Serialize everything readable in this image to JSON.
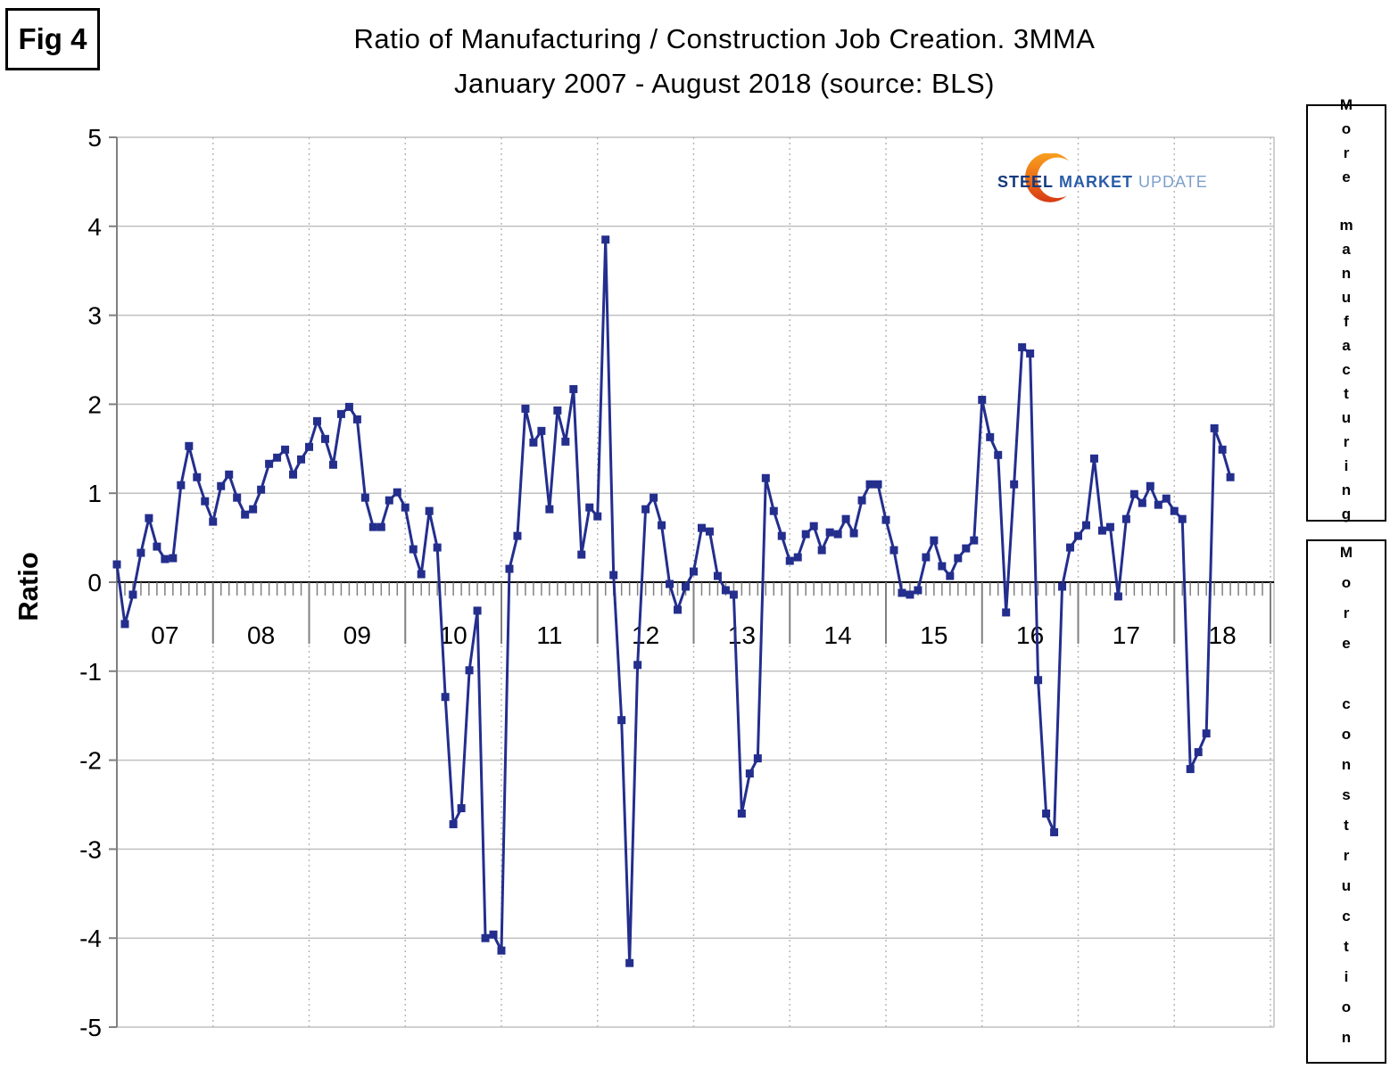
{
  "figure_label": "Fig 4",
  "title_line1": "Ratio of Manufacturing / Construction Job Creation. 3MMA",
  "title_line2": "January 2007 - August 2018 (source: BLS)",
  "y_axis_title": "Ratio",
  "logo": {
    "steel": "STEEL",
    "market": "MARKET",
    "update": "UPDATE"
  },
  "side_labels": {
    "top": "More manufacturing",
    "bottom": "More construction"
  },
  "colors": {
    "series": "#232E8D",
    "grid": "#C0C0C0",
    "axis_zero_line": "#000000",
    "axis_gray": "#808080",
    "year_dashed": "#B8B8B8",
    "logo_orange_top": "#F7A11E",
    "logo_orange_mid": "#EE7118",
    "logo_orange_bottom": "#D63A14",
    "logo_steel_blue": "#14397C",
    "logo_market_blue": "#2A5CA8",
    "logo_update_blue": "#7D9FCC"
  },
  "chart_data": {
    "type": "line",
    "title": "Ratio of Manufacturing / Construction Job Creation. 3MMA",
    "subtitle": "January 2007 - August 2018 (source: BLS)",
    "ylabel": "Ratio",
    "ylim": [
      -5,
      5
    ],
    "y_ticks": [
      5,
      4,
      3,
      2,
      1,
      0,
      -1,
      -2,
      -3,
      -4,
      -5
    ],
    "x_start": "2007-01",
    "x_end": "2018-08",
    "frequency": "monthly",
    "year_labels": [
      "07",
      "08",
      "09",
      "10",
      "11",
      "12",
      "13",
      "14",
      "15",
      "16",
      "17",
      "18"
    ],
    "grid": {
      "horizontal": "solid",
      "vertical": "dotted-yearly"
    },
    "legend": "none",
    "series": [
      {
        "name": "Manufacturing / Construction job creation ratio (3MMA)",
        "marker": "square",
        "color": "#232E8D",
        "values": [
          0.2,
          -0.47,
          -0.14,
          0.33,
          0.72,
          0.4,
          0.26,
          0.27,
          1.09,
          1.53,
          1.18,
          0.91,
          0.68,
          1.08,
          1.21,
          0.95,
          0.76,
          0.82,
          1.04,
          1.33,
          1.4,
          1.49,
          1.21,
          1.38,
          1.52,
          1.81,
          1.61,
          1.32,
          1.89,
          1.97,
          1.83,
          0.95,
          0.62,
          0.62,
          0.92,
          1.01,
          0.84,
          0.37,
          0.09,
          0.8,
          0.39,
          -1.29,
          -2.72,
          -2.54,
          -0.99,
          -0.32,
          -4.0,
          -3.96,
          -4.14,
          0.15,
          0.52,
          1.95,
          1.57,
          1.7,
          0.82,
          1.93,
          1.58,
          2.17,
          0.31,
          0.84,
          0.74,
          3.85,
          0.08,
          -1.55,
          -4.28,
          -0.93,
          0.82,
          0.95,
          0.64,
          -0.02,
          -0.31,
          -0.05,
          0.12,
          0.61,
          0.57,
          0.07,
          -0.09,
          -0.14,
          -2.6,
          -2.15,
          -1.98,
          1.17,
          0.8,
          0.52,
          0.24,
          0.28,
          0.54,
          0.63,
          0.36,
          0.56,
          0.54,
          0.71,
          0.55,
          0.92,
          1.1,
          1.1,
          0.7,
          0.36,
          -0.12,
          -0.14,
          -0.09,
          0.28,
          0.47,
          0.18,
          0.07,
          0.27,
          0.38,
          0.47,
          2.05,
          1.63,
          1.43,
          -0.34,
          1.1,
          2.64,
          2.57,
          -1.1,
          -2.6,
          -2.81,
          -0.05,
          0.39,
          0.52,
          0.64,
          1.39,
          0.58,
          0.62,
          -0.16,
          0.71,
          0.99,
          0.89,
          1.08,
          0.87,
          0.94,
          0.8,
          0.71,
          -2.1,
          -1.91,
          -1.7,
          1.73,
          1.49,
          1.18
        ]
      }
    ]
  }
}
